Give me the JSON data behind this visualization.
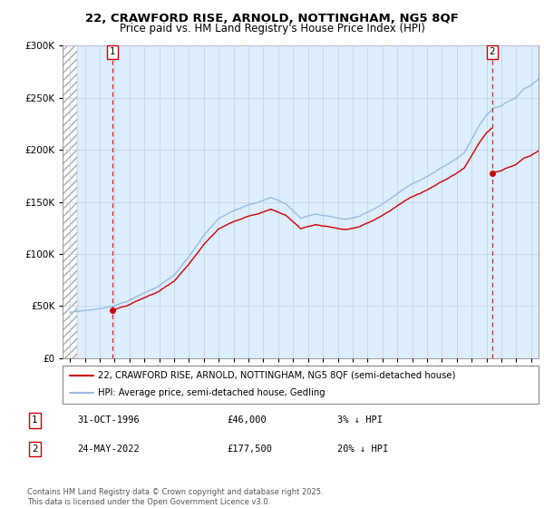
{
  "title1": "22, CRAWFORD RISE, ARNOLD, NOTTINGHAM, NG5 8QF",
  "title2": "Price paid vs. HM Land Registry's House Price Index (HPI)",
  "legend1": "22, CRAWFORD RISE, ARNOLD, NOTTINGHAM, NG5 8QF (semi-detached house)",
  "legend2": "HPI: Average price, semi-detached house, Gedling",
  "sale1_date": "31-OCT-1996",
  "sale1_price": 46000,
  "sale1_label": "3% ↓ HPI",
  "sale2_date": "24-MAY-2022",
  "sale2_price": 177500,
  "sale2_label": "20% ↓ HPI",
  "footnote": "Contains HM Land Registry data © Crown copyright and database right 2025.\nThis data is licensed under the Open Government Licence v3.0.",
  "ylim": [
    0,
    300000
  ],
  "line_color_red": "#cc0000",
  "line_color_blue": "#99bbdd",
  "background_color": "#ddeeff",
  "plot_bg": "#ffffff",
  "grid_color": "#c0cfe0",
  "sale1_x": 1996.83,
  "sale2_x": 2022.38,
  "xmin": 1993.5,
  "xmax": 2025.5,
  "hatch_end": 1994.5
}
